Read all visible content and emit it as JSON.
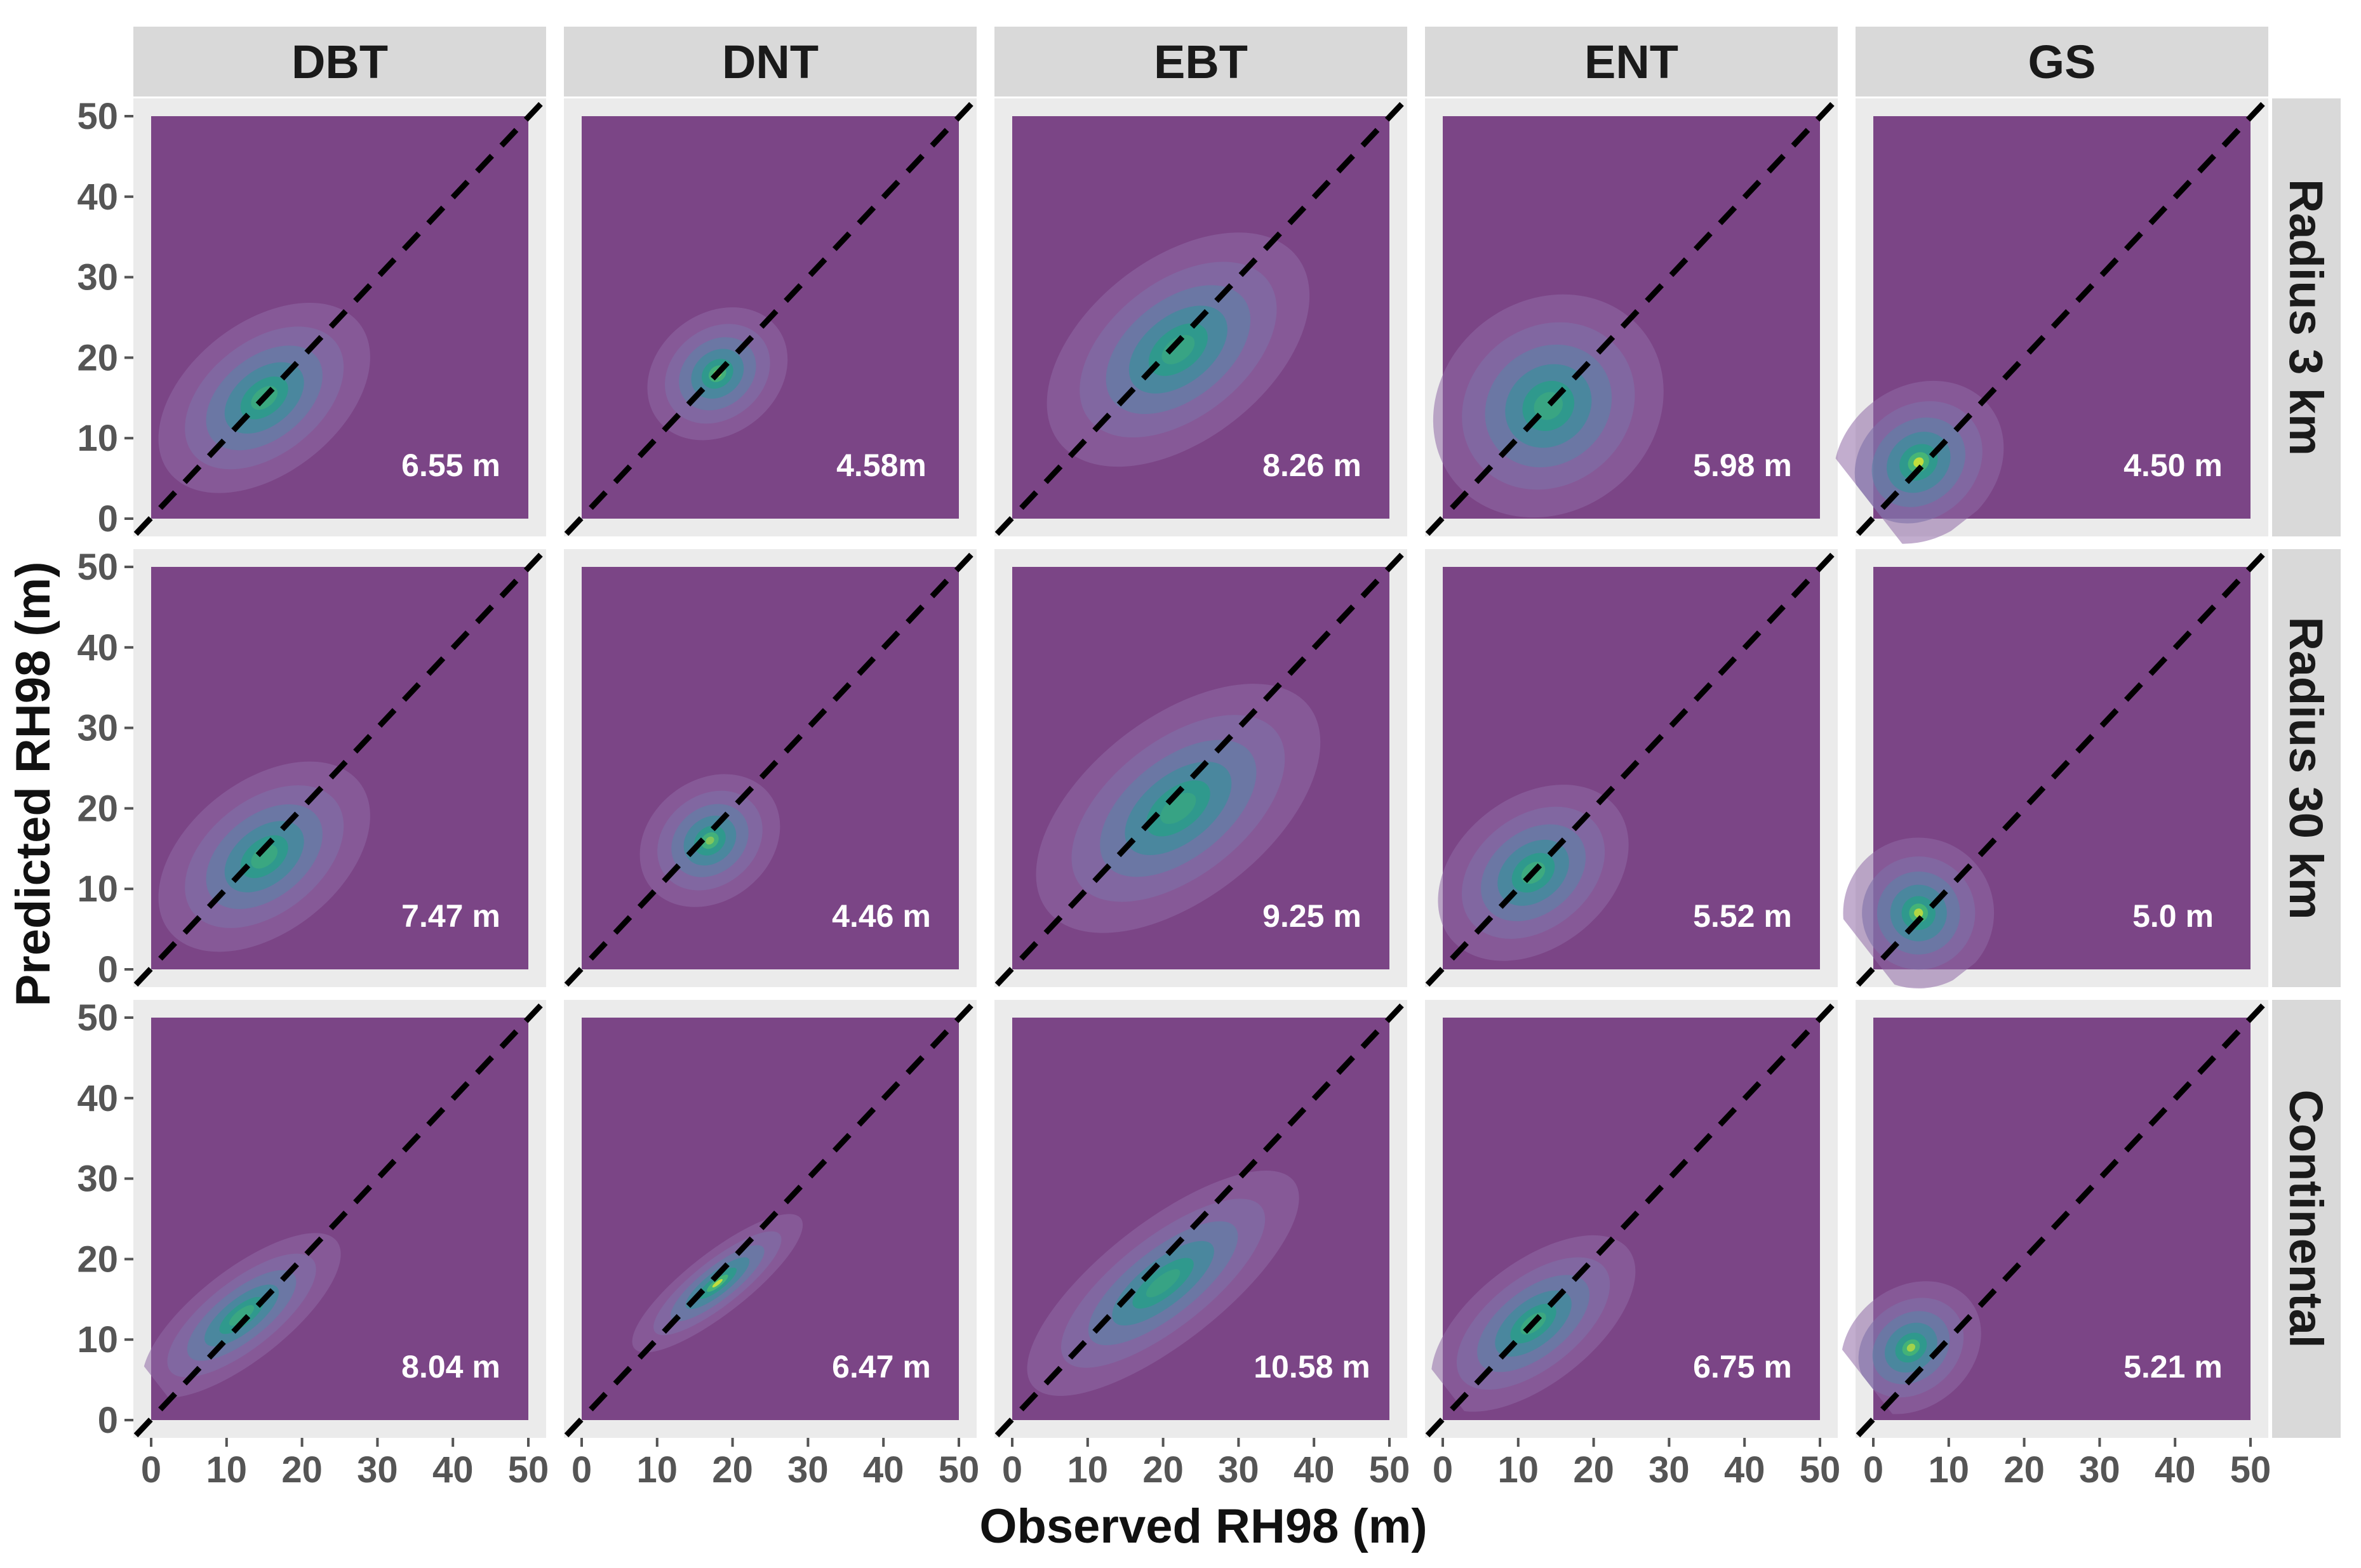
{
  "chart_data": {
    "type": "density-scatter-facet",
    "title": "",
    "xlabel": "Observed RH98 (m)",
    "ylabel": "Predicted RH98 (m)",
    "xlim": [
      0,
      50
    ],
    "ylim": [
      0,
      50
    ],
    "x_ticks": [
      "0",
      "10",
      "20",
      "30",
      "40",
      "50"
    ],
    "y_ticks": [
      "0",
      "10",
      "20",
      "30",
      "40",
      "50"
    ],
    "columns": [
      "DBT",
      "DNT",
      "EBT",
      "ENT",
      "GS"
    ],
    "rows": [
      "Radius 3 km",
      "Radius 30 km",
      "Continental"
    ],
    "reference_line": "1:1",
    "rmse_labels": [
      [
        "6.55 m",
        "4.58m",
        "8.26 m",
        "5.98 m",
        "4.50 m"
      ],
      [
        "7.47 m",
        "4.46 m",
        "9.25 m",
        "5.52 m",
        "5.0 m"
      ],
      [
        "8.04 m",
        "6.47 m",
        "10.58 m",
        "6.75 m",
        "5.21 m"
      ]
    ],
    "density_centers": [
      [
        {
          "x": 15,
          "y": 15,
          "sx": 8,
          "sy": 5,
          "peak": 0.55
        },
        {
          "x": 18,
          "y": 18,
          "sx": 5,
          "sy": 4,
          "peak": 0.85
        },
        {
          "x": 22,
          "y": 21,
          "sx": 10,
          "sy": 6,
          "peak": 0.4
        },
        {
          "x": 14,
          "y": 14,
          "sx": 8,
          "sy": 7,
          "peak": 0.45
        },
        {
          "x": 6,
          "y": 7,
          "sx": 6,
          "sy": 5,
          "peak": 1.0
        }
      ],
      [
        {
          "x": 15,
          "y": 14,
          "sx": 8,
          "sy": 5,
          "peak": 0.5
        },
        {
          "x": 17,
          "y": 16,
          "sx": 5,
          "sy": 4,
          "peak": 0.8
        },
        {
          "x": 22,
          "y": 20,
          "sx": 11,
          "sy": 6,
          "peak": 0.35
        },
        {
          "x": 12,
          "y": 12,
          "sx": 7,
          "sy": 5,
          "peak": 0.6
        },
        {
          "x": 6,
          "y": 7,
          "sx": 5,
          "sy": 5,
          "peak": 0.95
        }
      ],
      [
        {
          "x": 12,
          "y": 13,
          "sx": 8,
          "sy": 3,
          "peak": 0.5
        },
        {
          "x": 18,
          "y": 17,
          "sx": 7,
          "sy": 2,
          "peak": 1.0
        },
        {
          "x": 20,
          "y": 17,
          "sx": 11,
          "sy": 4,
          "peak": 0.35
        },
        {
          "x": 12,
          "y": 12,
          "sx": 8,
          "sy": 4,
          "peak": 0.55
        },
        {
          "x": 5,
          "y": 9,
          "sx": 5,
          "sy": 4,
          "peak": 0.9
        }
      ]
    ],
    "colors": {
      "panel_background": "#7b4586",
      "strip_background": "#d9d9d9",
      "panel_border_bg": "#ebebeb",
      "density_low": "#8a64a0",
      "density_mid": "#2f9f8c",
      "density_high": "#fde725",
      "reference_line": "#000000"
    }
  }
}
